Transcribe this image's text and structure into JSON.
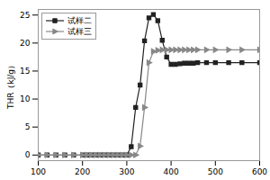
{
  "chart_data": {
    "type": "line",
    "ylabel": "THR（kJ/g）",
    "x": [
      100,
      120,
      140,
      160,
      180,
      200,
      210,
      220,
      230,
      240,
      250,
      260,
      270,
      280,
      290,
      300,
      310,
      320,
      330,
      340,
      350,
      360,
      370,
      380,
      390,
      400,
      410,
      420,
      430,
      440,
      450,
      460,
      480,
      500,
      530,
      560,
      600
    ],
    "series": [
      {
        "name": "试样二",
        "color": "#222222",
        "marker": "square",
        "values": [
          0,
          0,
          0,
          0,
          0,
          0,
          0,
          0,
          0,
          0,
          0,
          0,
          0,
          0,
          0,
          0,
          1.5,
          8.5,
          12.5,
          20.4,
          24.5,
          25.1,
          24.0,
          20.5,
          17.5,
          16.2,
          16.2,
          16.3,
          16.4,
          16.4,
          16.4,
          16.5,
          16.5,
          16.5,
          16.5,
          16.5,
          16.5
        ]
      },
      {
        "name": "试样三",
        "color": "#888888",
        "marker": "triangle-right",
        "values": [
          0,
          0,
          0,
          0,
          0,
          0,
          0,
          0,
          0,
          0,
          0,
          0,
          0,
          0,
          0,
          0,
          0,
          0,
          1.6,
          8.5,
          16.5,
          18.5,
          18.7,
          18.8,
          18.8,
          18.8,
          18.8,
          18.8,
          18.8,
          18.8,
          18.8,
          18.8,
          18.8,
          18.8,
          18.8,
          18.8,
          18.8
        ]
      }
    ],
    "xlim": [
      100,
      600
    ],
    "ylim": [
      -1,
      26
    ],
    "xticks": [
      100,
      200,
      300,
      400,
      500,
      600
    ],
    "yticks": [
      0,
      5,
      10,
      15,
      20,
      25
    ],
    "legend": "upper left",
    "grid": false
  }
}
